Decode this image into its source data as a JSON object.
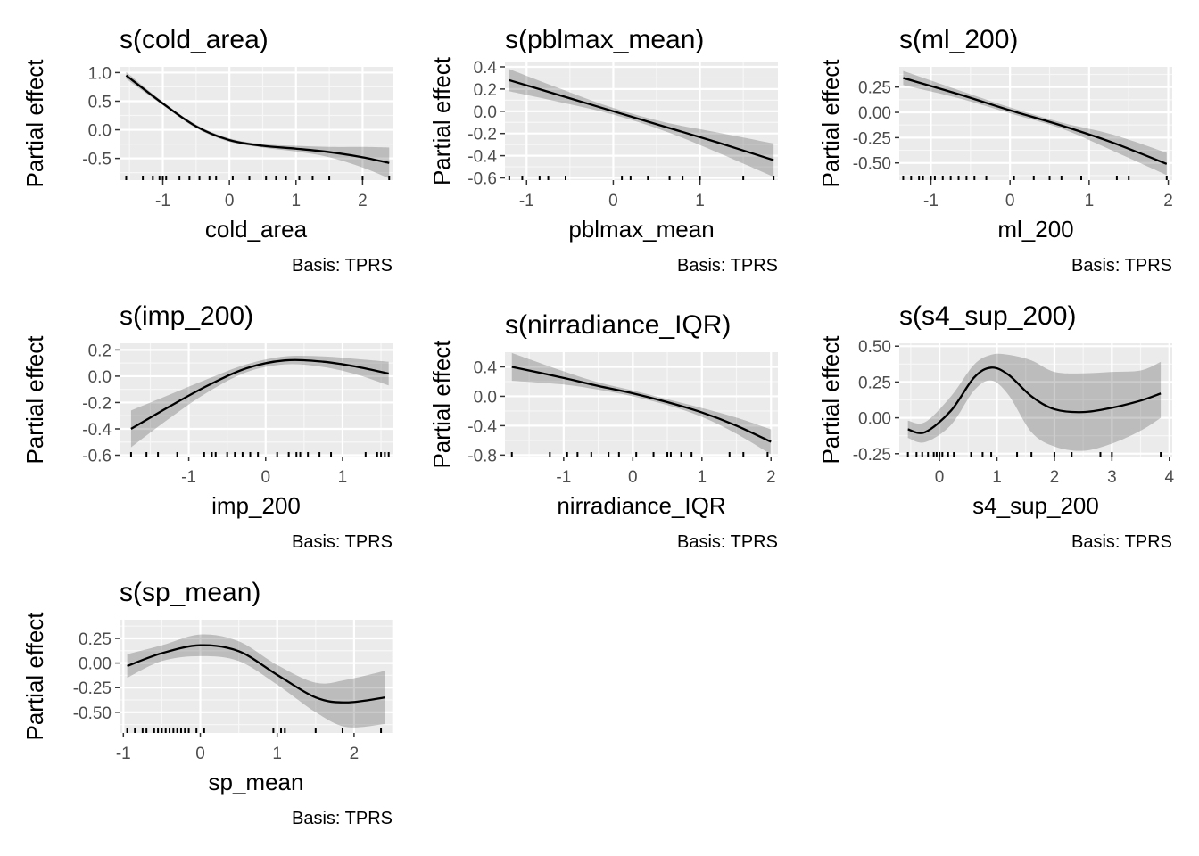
{
  "figure": {
    "panel_count": 7,
    "layout": "3-column grid"
  },
  "chart_data": [
    {
      "type": "line",
      "title": "s(cold_area)",
      "xlabel": "cold_area",
      "ylabel": "Partial effect",
      "caption": "Basis: TPRS",
      "xlim": [
        -1.65,
        2.45
      ],
      "ylim": [
        -0.88,
        1.1
      ],
      "xticks": [
        -1,
        0,
        1,
        2
      ],
      "yticks": [
        -0.5,
        0.0,
        0.5,
        1.0
      ],
      "ytick_labels": [
        "-0.5",
        "0.0",
        "0.5",
        "1.0"
      ],
      "series": [
        {
          "x": [
            -1.55,
            -1.0,
            -0.5,
            0.0,
            0.5,
            1.0,
            1.5,
            2.0,
            2.4
          ],
          "y": [
            0.95,
            0.46,
            0.06,
            -0.18,
            -0.28,
            -0.33,
            -0.39,
            -0.48,
            -0.58
          ],
          "lower": [
            0.89,
            0.43,
            0.03,
            -0.21,
            -0.31,
            -0.38,
            -0.48,
            -0.66,
            -0.85
          ],
          "upper": [
            1.01,
            0.49,
            0.09,
            -0.15,
            -0.25,
            -0.28,
            -0.3,
            -0.3,
            -0.31
          ]
        }
      ],
      "rug": [
        -1.55,
        -1.3,
        -1.15,
        -1.05,
        -1.0,
        -0.95,
        -0.75,
        -0.6,
        -0.45,
        -0.3,
        -0.2,
        0.05,
        0.3,
        0.55,
        0.7,
        0.85,
        1.05,
        1.25,
        1.5,
        2.0,
        2.4
      ]
    },
    {
      "type": "line",
      "title": "s(pblmax_mean)",
      "xlabel": "pblmax_mean",
      "ylabel": "Partial effect",
      "caption": "Basis: TPRS",
      "xlim": [
        -1.25,
        1.9
      ],
      "ylim": [
        -0.62,
        0.44
      ],
      "xticks": [
        -1,
        0,
        1
      ],
      "yticks": [
        -0.6,
        -0.4,
        -0.2,
        0.0,
        0.2,
        0.4
      ],
      "ytick_labels": [
        "-0.6",
        "-0.4",
        "-0.2",
        "0.0",
        "0.2",
        "0.4"
      ],
      "series": [
        {
          "x": [
            -1.2,
            -0.6,
            0.0,
            0.6,
            1.2,
            1.85
          ],
          "y": [
            0.28,
            0.14,
            0.0,
            -0.14,
            -0.28,
            -0.44
          ],
          "lower": [
            0.18,
            0.08,
            -0.03,
            -0.18,
            -0.37,
            -0.59
          ],
          "upper": [
            0.38,
            0.2,
            0.03,
            -0.1,
            -0.19,
            -0.29
          ]
        }
      ],
      "rug": [
        -1.2,
        -1.05,
        -0.85,
        -0.75,
        -0.55,
        0.1,
        0.2,
        0.4,
        0.65,
        0.8,
        1.0,
        1.5,
        1.85
      ]
    },
    {
      "type": "line",
      "title": "s(ml_200)",
      "xlabel": "ml_200",
      "ylabel": "Partial effect",
      "caption": "Basis: TPRS",
      "xlim": [
        -1.4,
        2.05
      ],
      "ylim": [
        -0.67,
        0.45
      ],
      "xticks": [
        -1,
        0,
        1,
        2
      ],
      "yticks": [
        -0.5,
        -0.25,
        0.0,
        0.25
      ],
      "ytick_labels": [
        "-0.50",
        "-0.25",
        "0.00",
        "0.25"
      ],
      "series": [
        {
          "x": [
            -1.35,
            -0.65,
            0.0,
            0.65,
            1.3,
            1.98
          ],
          "y": [
            0.34,
            0.18,
            0.02,
            -0.13,
            -0.3,
            -0.51
          ],
          "lower": [
            0.27,
            0.14,
            -0.01,
            -0.16,
            -0.38,
            -0.62
          ],
          "upper": [
            0.41,
            0.22,
            0.05,
            -0.1,
            -0.22,
            -0.4
          ]
        }
      ],
      "rug": [
        -1.35,
        -1.25,
        -1.15,
        -1.1,
        -1.0,
        -0.95,
        -0.85,
        -0.75,
        -0.65,
        -0.55,
        -0.45,
        -0.3,
        0.05,
        0.3,
        0.5,
        0.65,
        0.9,
        1.35,
        1.5,
        1.98
      ]
    },
    {
      "type": "line",
      "title": "s(imp_200)",
      "xlabel": "imp_200",
      "ylabel": "Partial effect",
      "caption": "Basis: TPRS",
      "xlim": [
        -1.9,
        1.65
      ],
      "ylim": [
        -0.61,
        0.25
      ],
      "xticks": [
        -1,
        0,
        1
      ],
      "yticks": [
        -0.6,
        -0.4,
        -0.2,
        0.0,
        0.2
      ],
      "ytick_labels": [
        "-0.6",
        "-0.4",
        "-0.2",
        "0.0",
        "0.2"
      ],
      "series": [
        {
          "x": [
            -1.75,
            -1.25,
            -0.75,
            -0.25,
            0.25,
            0.75,
            1.2,
            1.6
          ],
          "y": [
            -0.4,
            -0.23,
            -0.07,
            0.06,
            0.12,
            0.11,
            0.07,
            0.02
          ],
          "lower": [
            -0.54,
            -0.32,
            -0.12,
            0.03,
            0.09,
            0.07,
            0.01,
            -0.07
          ],
          "upper": [
            -0.26,
            -0.14,
            -0.02,
            0.09,
            0.15,
            0.15,
            0.13,
            0.11
          ]
        }
      ],
      "rug": [
        -1.75,
        -1.55,
        -1.4,
        -1.15,
        -0.8,
        -0.7,
        -0.65,
        -0.5,
        -0.4,
        -0.3,
        -0.2,
        -0.1,
        0.15,
        0.3,
        0.4,
        0.45,
        0.55,
        0.7,
        0.85,
        1.3,
        1.45,
        1.5,
        1.55,
        1.6
      ]
    },
    {
      "type": "line",
      "title": "s(nirradiance_IQR)",
      "xlabel": "nirradiance_IQR",
      "ylabel": "Partial effect",
      "caption": "Basis: TPRS",
      "xlim": [
        -1.85,
        2.1
      ],
      "ylim": [
        -0.82,
        0.6
      ],
      "xticks": [
        -1,
        0,
        1,
        2
      ],
      "yticks": [
        -0.8,
        -0.4,
        0.0,
        0.4
      ],
      "ytick_labels": [
        "-0.8",
        "-0.4",
        "0.0",
        "0.4"
      ],
      "series": [
        {
          "x": [
            -1.75,
            -1.0,
            -0.5,
            0.0,
            0.5,
            1.0,
            1.5,
            2.0
          ],
          "y": [
            0.4,
            0.25,
            0.14,
            0.04,
            -0.08,
            -0.22,
            -0.4,
            -0.62
          ],
          "lower": [
            0.21,
            0.16,
            0.09,
            0.0,
            -0.12,
            -0.28,
            -0.51,
            -0.79
          ],
          "upper": [
            0.59,
            0.34,
            0.19,
            0.08,
            -0.04,
            -0.16,
            -0.29,
            -0.45
          ]
        }
      ],
      "rug": [
        -1.75,
        -1.2,
        -0.95,
        -0.8,
        -0.6,
        -0.35,
        -0.2,
        0.05,
        0.3,
        0.5,
        0.55,
        0.7,
        0.85,
        1.4,
        1.6,
        1.95
      ]
    },
    {
      "type": "line",
      "title": "s(s4_sup_200)",
      "xlabel": "s4_sup_200",
      "ylabel": "Partial effect",
      "caption": "Basis: TPRS",
      "xlim": [
        -0.7,
        4.05
      ],
      "ylim": [
        -0.27,
        0.52
      ],
      "xticks": [
        0,
        1,
        2,
        3,
        4
      ],
      "yticks": [
        -0.25,
        0.0,
        0.25,
        0.5
      ],
      "ytick_labels": [
        "-0.25",
        "0.00",
        "0.25",
        "0.50"
      ],
      "series": [
        {
          "x": [
            -0.55,
            -0.25,
            0.2,
            0.6,
            0.9,
            1.2,
            1.6,
            2.0,
            2.5,
            3.0,
            3.5,
            3.85
          ],
          "y": [
            -0.08,
            -0.1,
            0.05,
            0.28,
            0.35,
            0.3,
            0.15,
            0.06,
            0.04,
            0.07,
            0.12,
            0.17
          ],
          "lower": [
            -0.14,
            -0.17,
            -0.05,
            0.19,
            0.26,
            0.16,
            -0.1,
            -0.2,
            -0.23,
            -0.18,
            -0.09,
            0.0
          ],
          "upper": [
            -0.02,
            -0.03,
            0.15,
            0.37,
            0.44,
            0.44,
            0.4,
            0.32,
            0.31,
            0.32,
            0.33,
            0.39
          ]
        }
      ],
      "rug": [
        -0.55,
        -0.4,
        -0.3,
        -0.2,
        -0.1,
        -0.05,
        0.0,
        0.05,
        0.15,
        0.25,
        0.55,
        0.75,
        0.9,
        1.35,
        1.6,
        2.0,
        2.3,
        2.8,
        3.0,
        3.85
      ]
    },
    {
      "type": "line",
      "title": "s(sp_mean)",
      "xlabel": "sp_mean",
      "ylabel": "Partial effect",
      "caption": "Basis: TPRS",
      "xlim": [
        -1.05,
        2.5
      ],
      "ylim": [
        -0.71,
        0.44
      ],
      "xticks": [
        -1,
        0,
        1,
        2
      ],
      "yticks": [
        -0.5,
        -0.25,
        0.0,
        0.25
      ],
      "ytick_labels": [
        "-0.50",
        "-0.25",
        "0.00",
        "0.25"
      ],
      "series": [
        {
          "x": [
            -0.95,
            -0.5,
            0.0,
            0.5,
            1.0,
            1.5,
            1.9,
            2.4
          ],
          "y": [
            -0.03,
            0.1,
            0.18,
            0.12,
            -0.12,
            -0.35,
            -0.4,
            -0.35
          ],
          "lower": [
            -0.15,
            0.02,
            0.07,
            0.02,
            -0.22,
            -0.5,
            -0.65,
            -0.62
          ],
          "upper": [
            0.09,
            0.18,
            0.29,
            0.22,
            -0.02,
            -0.2,
            -0.17,
            -0.08
          ]
        }
      ],
      "rug": [
        -0.95,
        -0.85,
        -0.75,
        -0.7,
        -0.6,
        -0.55,
        -0.5,
        -0.45,
        -0.4,
        -0.35,
        -0.3,
        -0.25,
        -0.2,
        -0.15,
        -0.05,
        0.05,
        0.95,
        1.05,
        1.1,
        1.5,
        1.85,
        2.35
      ]
    }
  ]
}
